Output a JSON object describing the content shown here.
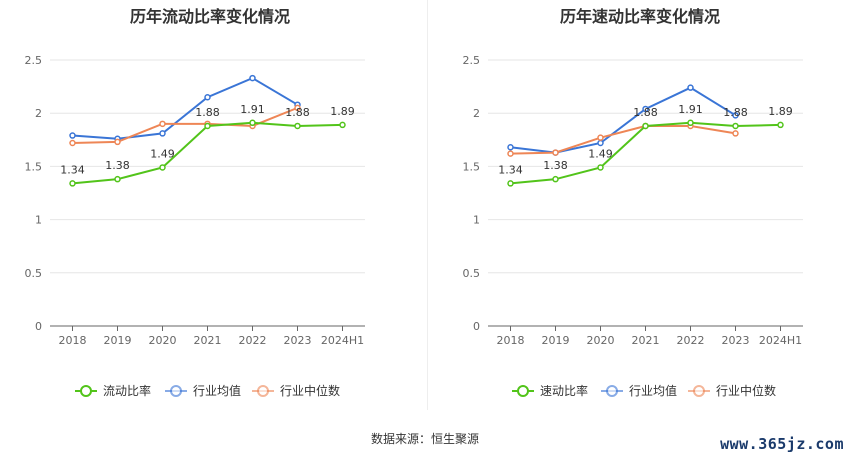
{
  "source_text": "数据来源：恒生聚源",
  "watermark": "www.365jz.com",
  "chart_data": [
    {
      "type": "line",
      "title": "历年流动比率变化情况",
      "categories": [
        "2018",
        "2019",
        "2020",
        "2021",
        "2022",
        "2023",
        "2024H1"
      ],
      "ylim": [
        0,
        2.5
      ],
      "yticks": [
        "0",
        "0.5",
        "1",
        "1.5",
        "2",
        "2.5"
      ],
      "grid": true,
      "legend_position": "bottom",
      "series": [
        {
          "name": "流动比率",
          "color": "#52c41a",
          "values": [
            1.34,
            1.38,
            1.49,
            1.88,
            1.91,
            1.88,
            1.89
          ],
          "labels": [
            "1.34",
            "1.38",
            "1.49",
            "1.88",
            "1.91",
            "1.88",
            "1.89"
          ]
        },
        {
          "name": "行业均值",
          "color": "#3a75d6",
          "values": [
            1.79,
            1.76,
            1.81,
            2.15,
            2.33,
            2.08,
            null
          ],
          "labels": []
        },
        {
          "name": "行业中位数",
          "color": "#ee8656",
          "values": [
            1.72,
            1.73,
            1.9,
            1.9,
            1.88,
            2.05,
            null
          ],
          "labels": []
        }
      ]
    },
    {
      "type": "line",
      "title": "历年速动比率变化情况",
      "categories": [
        "2018",
        "2019",
        "2020",
        "2021",
        "2022",
        "2023",
        "2024H1"
      ],
      "ylim": [
        0,
        2.5
      ],
      "yticks": [
        "0",
        "0.5",
        "1",
        "1.5",
        "2",
        "2.5"
      ],
      "grid": true,
      "legend_position": "bottom",
      "series": [
        {
          "name": "速动比率",
          "color": "#52c41a",
          "values": [
            1.34,
            1.38,
            1.49,
            1.88,
            1.91,
            1.88,
            1.89
          ],
          "labels": [
            "1.34",
            "1.38",
            "1.49",
            "1.88",
            "1.91",
            "1.88",
            "1.89"
          ]
        },
        {
          "name": "行业均值",
          "color": "#3a75d6",
          "values": [
            1.68,
            1.63,
            1.72,
            2.04,
            2.24,
            1.98,
            null
          ],
          "labels": []
        },
        {
          "name": "行业中位数",
          "color": "#ee8656",
          "values": [
            1.62,
            1.63,
            1.77,
            1.88,
            1.88,
            1.81,
            null
          ],
          "labels": []
        }
      ]
    }
  ]
}
